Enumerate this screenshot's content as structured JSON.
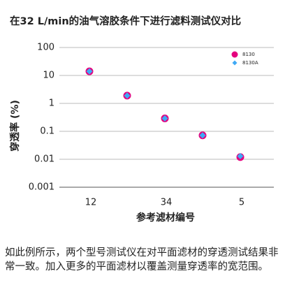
{
  "chart_data": {
    "type": "scatter",
    "title": "在32 L/min的油气溶胶条件下进行滤料测试仪对比",
    "xlabel": "参考滤材编号",
    "ylabel": "穿透率 (%)",
    "categories": [
      "12",
      null,
      "34",
      null,
      "5"
    ],
    "series": [
      {
        "name": "8130",
        "color": "#e5007e",
        "marker": "circle",
        "values": [
          14,
          1.9,
          0.29,
          0.072,
          0.012
        ]
      },
      {
        "name": "8130A",
        "color": "#3fa9f5",
        "marker": "diamond",
        "values": [
          14,
          1.9,
          0.29,
          0.072,
          0.013
        ]
      }
    ],
    "log_y": true,
    "ylim": [
      0.001,
      100
    ],
    "yticks": [
      0.001,
      0.01,
      0.1,
      1,
      10,
      100
    ],
    "grid": true,
    "legend": "upper right"
  },
  "caption": "如此例所示，两个型号测试仪在对平面滤材的穿透测试结果非常一致。加入更多的平面滤材以覆盖测量穿透率的宽范围。"
}
